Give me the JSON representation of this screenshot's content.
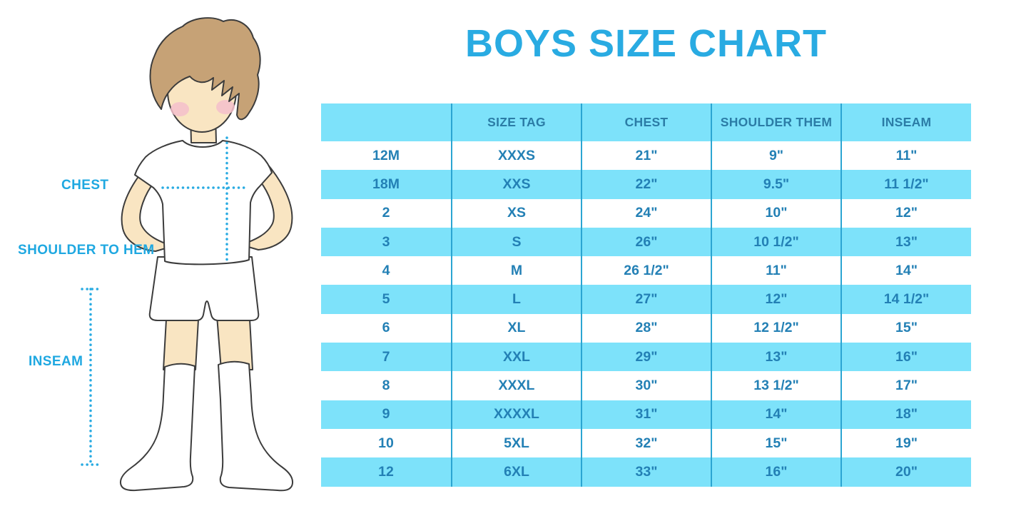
{
  "title": "BOYS SIZE CHART",
  "figure": {
    "description": "outlined illustration of a boy in white t-shirt, shorts and knee socks with dotted measurement guides",
    "labels": {
      "chest": "CHEST",
      "shoulder_to_hem": "SHOULDER TO HEM",
      "inseam": "INSEAM"
    }
  },
  "chart_data": {
    "type": "table",
    "title": "BOYS SIZE CHART",
    "columns": [
      "",
      "SIZE TAG",
      "CHEST",
      "SHOULDER THEM",
      "INSEAM"
    ],
    "rows": [
      [
        "12M",
        "XXXS",
        "21\"",
        "9\"",
        "11\""
      ],
      [
        "18M",
        "XXS",
        "22\"",
        "9.5\"",
        "11 1/2\""
      ],
      [
        "2",
        "XS",
        "24\"",
        "10\"",
        "12\""
      ],
      [
        "3",
        "S",
        "26\"",
        "10 1/2\"",
        "13\""
      ],
      [
        "4",
        "M",
        "26 1/2\"",
        "11\"",
        "14\""
      ],
      [
        "5",
        "L",
        "27\"",
        "12\"",
        "14 1/2\""
      ],
      [
        "6",
        "XL",
        "28\"",
        "12 1/2\"",
        "15\""
      ],
      [
        "7",
        "XXL",
        "29\"",
        "13\"",
        "16\""
      ],
      [
        "8",
        "XXXL",
        "30\"",
        "13 1/2\"",
        "17\""
      ],
      [
        "9",
        "XXXXL",
        "31\"",
        "14\"",
        "18\""
      ],
      [
        "10",
        "5XL",
        "32\"",
        "15\"",
        "19\""
      ],
      [
        "12",
        "6XL",
        "33\"",
        "16\"",
        "20\""
      ]
    ],
    "layout_hints": {
      "header_background": "light blue band",
      "row_striping": "white / light blue alternating starting white",
      "column_dividers": "vertical blue lines, no horizontal grid lines"
    }
  },
  "colors": {
    "accent_blue": "#29ABE2",
    "band_light_blue": "#7DE2FA",
    "divider_blue": "#2BA5D2",
    "header_text": "#2B7CA6",
    "cell_text": "#2380B5",
    "skin": "#F9E5C2",
    "hair": "#C6A276",
    "blush": "#F4BFCB",
    "outline": "#3C3C3C"
  }
}
